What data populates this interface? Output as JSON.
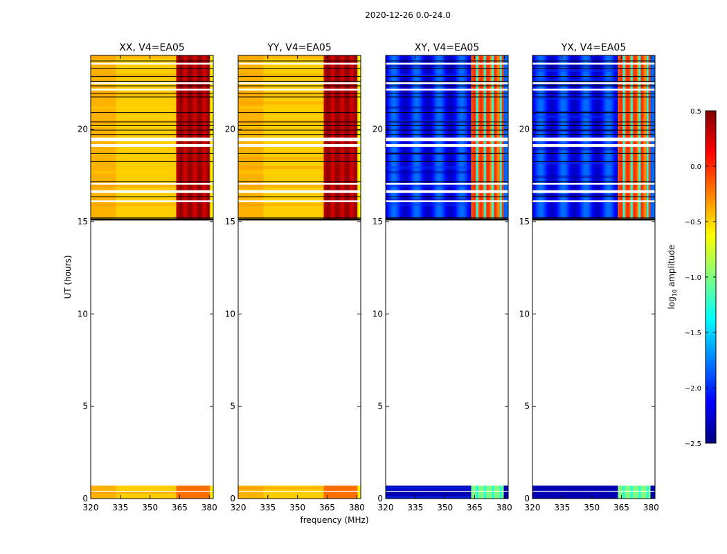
{
  "chart_data": {
    "type": "heatmap",
    "suptitle": "2020-12-26 0.0-24.0",
    "xlabel": "frequency (MHz)",
    "ylabel": "UT (hours)",
    "xlim": [
      320,
      382
    ],
    "ylim": [
      0,
      24
    ],
    "xticks": [
      320,
      335,
      350,
      365,
      380
    ],
    "yticks": [
      0,
      5,
      10,
      15,
      20
    ],
    "data_time_ranges_hours": [
      [
        0,
        0.7
      ],
      [
        15.1,
        24
      ]
    ],
    "bright_frequency_range_mhz": [
      363,
      380
    ],
    "panels": [
      {
        "title": "XX, V4=EA05",
        "kind": "parallel"
      },
      {
        "title": "YY, V4=EA05",
        "kind": "parallel"
      },
      {
        "title": "XY, V4=EA05",
        "kind": "cross"
      },
      {
        "title": "YX, V4=EA05",
        "kind": "cross"
      }
    ],
    "colorbar": {
      "label": "log10 amplitude",
      "range": [
        -2.5,
        0.5
      ],
      "ticks": [
        0.5,
        0.0,
        -0.5,
        -1.0,
        -1.5,
        -2.0,
        -2.5
      ],
      "tick_labels": [
        "0.5",
        "0.0",
        "−0.5",
        "−1.0",
        "−1.5",
        "−2.0",
        "−2.5"
      ],
      "colormap": "jet",
      "colors": [
        "#00007f",
        "#0000ff",
        "#007fff",
        "#00ffff",
        "#7fff7f",
        "#ffff00",
        "#ff7f00",
        "#ff0000",
        "#7f0000"
      ]
    }
  }
}
